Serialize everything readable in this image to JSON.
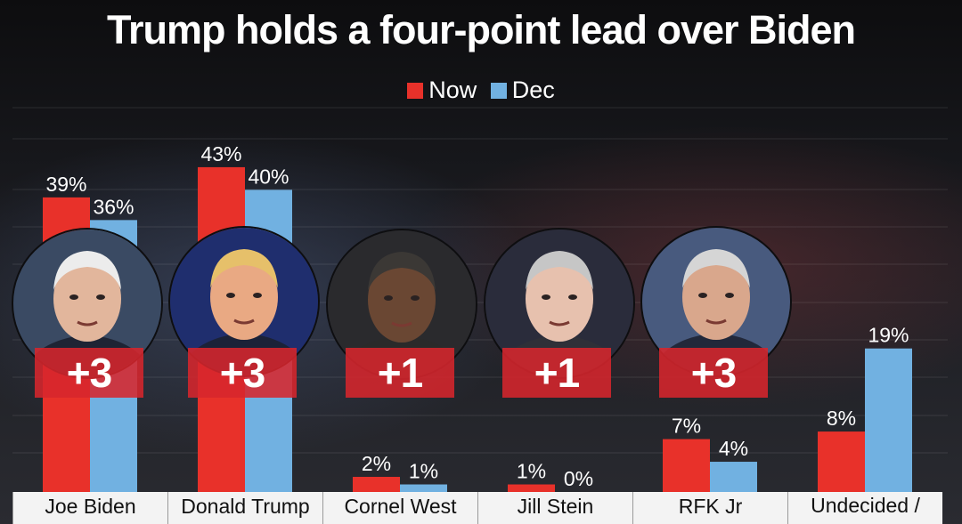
{
  "chart_data": {
    "type": "bar",
    "title": "Trump holds a four-point lead over Biden",
    "categories": [
      "Joe Biden",
      "Donald Trump",
      "Cornel West",
      "Jill Stein",
      "RFK Jr",
      "Undecided / Someone else"
    ],
    "series": [
      {
        "name": "Now",
        "values": [
          39,
          43,
          2,
          1,
          7,
          8
        ],
        "color": "#e8312a",
        "labels": [
          "39%",
          "43%",
          "2%",
          "1%",
          "7%",
          "8%"
        ]
      },
      {
        "name": "Dec",
        "values": [
          36,
          40,
          1,
          0,
          4,
          19
        ],
        "color": "#71b1e1",
        "labels": [
          "36%",
          "40%",
          "1%",
          "0%",
          "4%",
          "19%"
        ]
      }
    ],
    "annotations": [
      "+3",
      "+3",
      "+1",
      "+1",
      "+3"
    ],
    "ylim": [
      0,
      50
    ],
    "grid": true,
    "legend_position": "top-center"
  },
  "photos": [
    "joe-biden-portrait",
    "donald-trump-portrait",
    "cornel-west-portrait",
    "jill-stein-portrait",
    "rfk-jr-portrait"
  ]
}
